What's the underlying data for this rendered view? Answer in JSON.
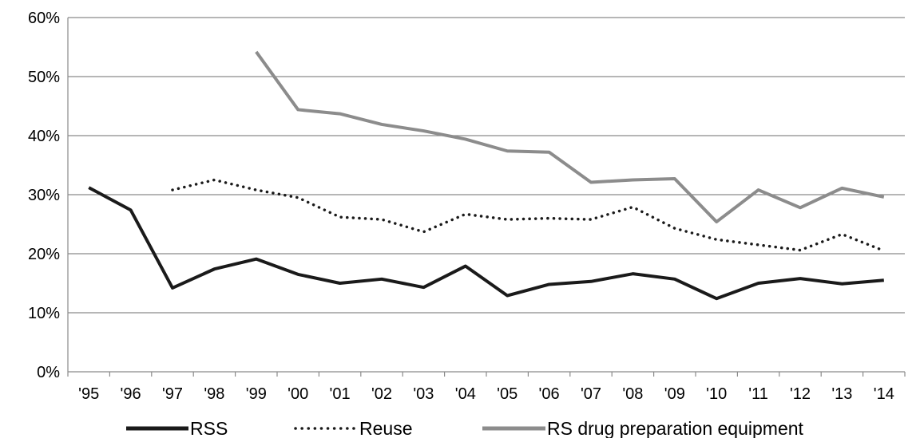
{
  "chart_data": {
    "type": "line",
    "title": "",
    "xlabel": "",
    "ylabel": "",
    "categories": [
      "'95",
      "'96",
      "'97",
      "'98",
      "'99",
      "'00",
      "'01",
      "'02",
      "'03",
      "'04",
      "'05",
      "'06",
      "'07",
      "'08",
      "'09",
      "'10",
      "'11",
      "'12",
      "'13",
      "'14"
    ],
    "y_ticks": [
      "0%",
      "10%",
      "20%",
      "30%",
      "40%",
      "50%",
      "60%"
    ],
    "ylim": [
      0,
      60
    ],
    "grid": true,
    "legend_position": "bottom",
    "series": [
      {
        "name": "RSS",
        "color": "#1a1a1a",
        "style": "solid",
        "values": [
          31.2,
          27.4,
          14.2,
          17.4,
          19.1,
          16.5,
          15.0,
          15.7,
          14.3,
          17.9,
          12.9,
          14.8,
          15.3,
          16.6,
          15.7,
          12.4,
          15.0,
          15.8,
          14.9,
          15.5
        ]
      },
      {
        "name": "Reuse",
        "color": "#1a1a1a",
        "style": "dotted",
        "values": [
          null,
          null,
          30.8,
          32.5,
          30.8,
          29.5,
          26.2,
          25.8,
          23.7,
          26.7,
          25.8,
          26.0,
          25.8,
          27.9,
          24.3,
          22.4,
          21.5,
          20.6,
          23.3,
          20.5
        ]
      },
      {
        "name": "RS drug preparation equipment",
        "color": "#8c8c8c",
        "style": "solid",
        "values": [
          null,
          null,
          null,
          null,
          54.2,
          44.4,
          43.7,
          41.9,
          40.8,
          39.4,
          37.4,
          37.2,
          32.1,
          32.5,
          32.7,
          25.4,
          30.8,
          27.8,
          31.1,
          29.6
        ]
      }
    ]
  }
}
